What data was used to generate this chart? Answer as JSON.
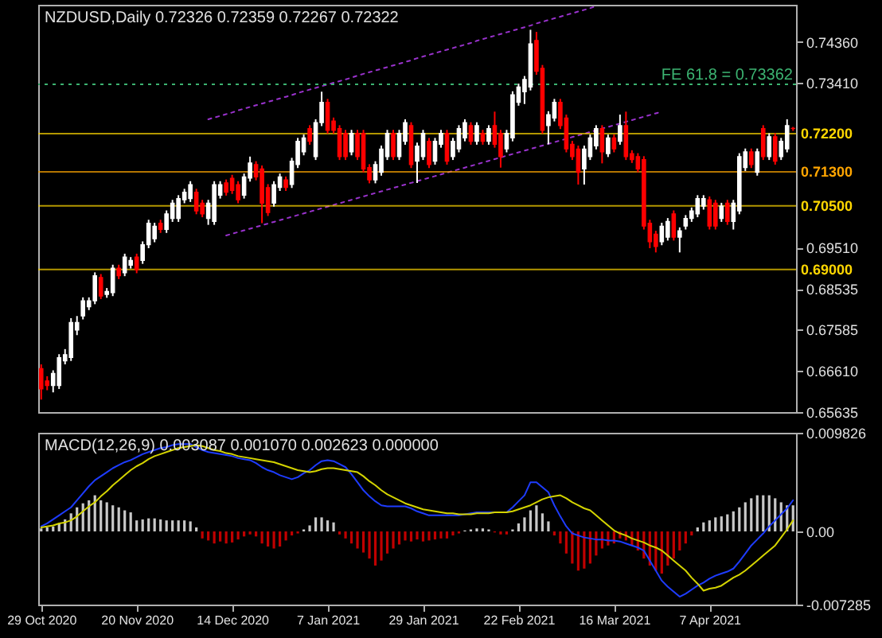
{
  "chart_data": [
    {
      "type": "candlestick",
      "title": "NZDUSD,Daily 0.72326 0.72359 0.72267 0.72322",
      "categories": [
        null,
        null,
        null,
        null,
        null,
        null,
        null,
        null,
        null,
        null,
        null,
        null,
        null,
        null,
        null,
        null,
        null,
        null,
        null,
        null,
        null,
        null,
        null,
        null,
        null,
        null,
        null,
        null,
        null,
        null,
        null,
        null,
        null,
        null,
        null,
        null,
        null,
        null,
        null,
        null,
        null,
        null,
        null,
        null,
        null,
        null,
        null,
        null,
        null,
        null,
        null,
        null,
        null,
        null,
        null,
        null,
        null,
        null,
        null,
        null,
        null,
        null,
        null,
        null,
        null,
        null,
        null,
        null,
        null,
        null,
        null,
        null,
        null,
        null,
        null,
        null,
        null,
        null,
        null,
        null,
        null,
        null,
        null,
        null,
        null,
        null,
        null,
        null,
        null,
        null,
        null,
        null,
        null,
        null,
        null,
        null,
        null,
        null,
        null,
        null,
        null,
        null,
        null,
        null,
        null,
        null,
        null,
        null,
        null,
        null,
        null,
        null,
        null,
        null,
        null,
        null,
        null,
        null,
        null,
        null,
        null,
        null,
        null,
        null,
        null,
        null,
        null
      ],
      "ohlc": [
        [
          0.6666,
          0.6676,
          0.6593,
          0.6618
        ],
        [
          0.6637,
          0.6648,
          0.6615,
          0.6626
        ],
        [
          0.6626,
          0.6662,
          0.661,
          0.6655
        ],
        [
          0.6626,
          0.67,
          0.6618,
          0.6692
        ],
        [
          0.6684,
          0.6712,
          0.6676,
          0.6699
        ],
        [
          0.6692,
          0.6785,
          0.6684,
          0.6775
        ],
        [
          0.6757,
          0.679,
          0.6745,
          0.6775
        ],
        [
          0.679,
          0.6834,
          0.6782,
          0.6826
        ],
        [
          0.6812,
          0.6834,
          0.6804,
          0.6826
        ],
        [
          0.6826,
          0.6893,
          0.6818,
          0.6885
        ],
        [
          0.6881,
          0.6889,
          0.683,
          0.6837
        ],
        [
          0.6841,
          0.6856,
          0.6833,
          0.6848
        ],
        [
          0.6845,
          0.6911,
          0.6837,
          0.6903
        ],
        [
          0.6903,
          0.6911,
          0.6877,
          0.6885
        ],
        [
          0.6892,
          0.6937,
          0.6884,
          0.6929
        ],
        [
          0.691,
          0.6929,
          0.6902,
          0.6921
        ],
        [
          0.6929,
          0.6937,
          0.6891,
          0.6899
        ],
        [
          0.6921,
          0.6966,
          0.6913,
          0.6958
        ],
        [
          0.6958,
          0.7017,
          0.695,
          0.7009
        ],
        [
          0.6972,
          0.701,
          0.6964,
          0.7002
        ],
        [
          0.7009,
          0.7017,
          0.6986,
          0.6994
        ],
        [
          0.6994,
          0.7039,
          0.6986,
          0.7031
        ],
        [
          0.702,
          0.7064,
          0.7012,
          0.7056
        ],
        [
          0.702,
          0.7075,
          0.7012,
          0.7067
        ],
        [
          0.7064,
          0.709,
          0.7056,
          0.7082
        ],
        [
          0.7067,
          0.7108,
          0.7059,
          0.71
        ],
        [
          0.7082,
          0.709,
          0.703,
          0.7038
        ],
        [
          0.7056,
          0.7064,
          0.7023,
          0.7031
        ],
        [
          0.702,
          0.7064,
          0.7005,
          0.7056
        ],
        [
          0.7013,
          0.7108,
          0.7005,
          0.71
        ],
        [
          0.7075,
          0.7108,
          0.7067,
          0.71
        ],
        [
          0.7104,
          0.7112,
          0.7074,
          0.7082
        ],
        [
          0.7115,
          0.7123,
          0.7078,
          0.7086
        ],
        [
          0.71,
          0.7108,
          0.7056,
          0.7064
        ],
        [
          0.7075,
          0.7126,
          0.7067,
          0.7118
        ],
        [
          0.7115,
          0.7166,
          0.7107,
          0.7151
        ],
        [
          0.7147,
          0.7155,
          0.711,
          0.7118
        ],
        [
          0.7137,
          0.7145,
          0.7009,
          0.7056
        ],
        [
          0.7093,
          0.7101,
          0.7026,
          0.7034
        ],
        [
          0.7056,
          0.7108,
          0.7048,
          0.71
        ],
        [
          0.7093,
          0.7126,
          0.7085,
          0.7118
        ],
        [
          0.7111,
          0.7119,
          0.7085,
          0.7093
        ],
        [
          0.71,
          0.7163,
          0.7092,
          0.7155
        ],
        [
          0.7147,
          0.721,
          0.7139,
          0.7202
        ],
        [
          0.7177,
          0.7218,
          0.7169,
          0.721
        ],
        [
          0.7232,
          0.724,
          0.7194,
          0.7202
        ],
        [
          0.7166,
          0.7254,
          0.7158,
          0.7246
        ],
        [
          0.7246,
          0.7319,
          0.7238,
          0.7294
        ],
        [
          0.7294,
          0.7302,
          0.722,
          0.7228
        ],
        [
          0.725,
          0.7258,
          0.722,
          0.7228
        ],
        [
          0.7232,
          0.724,
          0.7158,
          0.7166
        ],
        [
          0.7221,
          0.7229,
          0.7158,
          0.7166
        ],
        [
          0.7177,
          0.7229,
          0.7169,
          0.7221
        ],
        [
          0.7221,
          0.7229,
          0.7158,
          0.7166
        ],
        [
          0.7221,
          0.7229,
          0.7129,
          0.7137
        ],
        [
          0.714,
          0.7148,
          0.7103,
          0.7111
        ],
        [
          0.7111,
          0.7155,
          0.7103,
          0.7147
        ],
        [
          0.7129,
          0.7192,
          0.7121,
          0.7184
        ],
        [
          0.7166,
          0.7229,
          0.7158,
          0.7221
        ],
        [
          0.7221,
          0.7229,
          0.7158,
          0.7166
        ],
        [
          0.7166,
          0.7229,
          0.7158,
          0.7221
        ],
        [
          0.7202,
          0.7254,
          0.7194,
          0.7246
        ],
        [
          0.7239,
          0.7247,
          0.7139,
          0.7147
        ],
        [
          0.7155,
          0.7199,
          0.7104,
          0.7191
        ],
        [
          0.7166,
          0.7229,
          0.7158,
          0.7221
        ],
        [
          0.7202,
          0.721,
          0.7139,
          0.7147
        ],
        [
          0.7155,
          0.721,
          0.7147,
          0.7202
        ],
        [
          0.7195,
          0.7229,
          0.7187,
          0.7221
        ],
        [
          0.7221,
          0.7229,
          0.7147,
          0.7155
        ],
        [
          0.7166,
          0.721,
          0.7158,
          0.7202
        ],
        [
          0.7184,
          0.724,
          0.7176,
          0.7232
        ],
        [
          0.721,
          0.7254,
          0.7202,
          0.7246
        ],
        [
          0.7239,
          0.7247,
          0.7194,
          0.7202
        ],
        [
          0.7202,
          0.7247,
          0.7194,
          0.7239
        ],
        [
          0.7221,
          0.7229,
          0.7194,
          0.7202
        ],
        [
          0.7202,
          0.724,
          0.7194,
          0.7232
        ],
        [
          0.7239,
          0.7272,
          0.7187,
          0.7195
        ],
        [
          0.7221,
          0.7229,
          0.714,
          0.7166
        ],
        [
          0.7184,
          0.7229,
          0.7176,
          0.7221
        ],
        [
          0.721,
          0.732,
          0.7202,
          0.7312
        ],
        [
          0.7294,
          0.7338,
          0.7286,
          0.733
        ],
        [
          0.7319,
          0.7356,
          0.729,
          0.7348
        ],
        [
          0.733,
          0.7465,
          0.7322,
          0.7432
        ],
        [
          0.744,
          0.746,
          0.7359,
          0.7367
        ],
        [
          0.7374,
          0.7382,
          0.722,
          0.7228
        ],
        [
          0.7239,
          0.7273,
          0.7195,
          0.7265
        ],
        [
          0.7257,
          0.7302,
          0.7249,
          0.7294
        ],
        [
          0.7294,
          0.7302,
          0.7231,
          0.7239
        ],
        [
          0.7257,
          0.7265,
          0.7176,
          0.7184
        ],
        [
          0.7195,
          0.7203,
          0.7158,
          0.7166
        ],
        [
          0.7184,
          0.7192,
          0.71,
          0.7129
        ],
        [
          0.7137,
          0.7192,
          0.71,
          0.7184
        ],
        [
          0.7166,
          0.7218,
          0.7158,
          0.721
        ],
        [
          0.7191,
          0.724,
          0.7183,
          0.7232
        ],
        [
          0.7232,
          0.724,
          0.715,
          0.7177
        ],
        [
          0.7173,
          0.7218,
          0.7165,
          0.721
        ],
        [
          0.721,
          0.7218,
          0.7176,
          0.7184
        ],
        [
          0.7202,
          0.7265,
          0.7194,
          0.7239
        ],
        [
          0.7239,
          0.7272,
          0.7158,
          0.7166
        ],
        [
          0.7173,
          0.7181,
          0.7151,
          0.7159
        ],
        [
          0.7166,
          0.7174,
          0.7129,
          0.7137
        ],
        [
          0.7159,
          0.7167,
          0.6994,
          0.7002
        ],
        [
          0.7009,
          0.7017,
          0.695,
          0.6965
        ],
        [
          0.6983,
          0.6991,
          0.694,
          0.6954
        ],
        [
          0.6965,
          0.701,
          0.6957,
          0.7002
        ],
        [
          0.6976,
          0.7021,
          0.6968,
          0.7013
        ],
        [
          0.7031,
          0.7039,
          0.6968,
          0.6976
        ],
        [
          0.6976,
          0.6999,
          0.694,
          0.6991
        ],
        [
          0.7002,
          0.7028,
          0.6994,
          0.702
        ],
        [
          0.702,
          0.7046,
          0.7012,
          0.7038
        ],
        [
          0.7031,
          0.7075,
          0.7023,
          0.7067
        ],
        [
          0.7049,
          0.7075,
          0.7041,
          0.7067
        ],
        [
          0.7064,
          0.7072,
          0.6994,
          0.7002
        ],
        [
          0.7056,
          0.7064,
          0.6994,
          0.7002
        ],
        [
          0.702,
          0.7057,
          0.7012,
          0.7049
        ],
        [
          0.7056,
          0.7064,
          0.7005,
          0.7013
        ],
        [
          0.7013,
          0.7064,
          0.6994,
          0.7056
        ],
        [
          0.7038,
          0.7174,
          0.703,
          0.7166
        ],
        [
          0.714,
          0.7185,
          0.7132,
          0.7177
        ],
        [
          0.7177,
          0.7185,
          0.7139,
          0.7147
        ],
        [
          0.7129,
          0.7185,
          0.7121,
          0.7177
        ],
        [
          0.7232,
          0.724,
          0.7158,
          0.7166
        ],
        [
          0.7166,
          0.7221,
          0.7158,
          0.7213
        ],
        [
          0.7213,
          0.7221,
          0.7147,
          0.7155
        ],
        [
          0.7166,
          0.721,
          0.7158,
          0.7202
        ],
        [
          0.7184,
          0.7254,
          0.7176,
          0.7239
        ],
        [
          0.72326,
          0.72359,
          0.72267,
          0.72322
        ]
      ],
      "colors": [
        "#ff0000",
        "#ff0000",
        "#ffffff",
        "#ffffff",
        "#ffffff",
        "#ffffff",
        "#ffffff",
        "#ffffff",
        "#ffffff",
        "#ffffff",
        "#ff0000",
        "#ffffff",
        "#ffffff",
        "#ff0000",
        "#ffffff",
        "#ffffff",
        "#ff0000",
        "#ffffff",
        "#ffffff",
        "#ffffff",
        "#ff0000",
        "#ffffff",
        "#ffffff",
        "#ffffff",
        "#ffffff",
        "#ffffff",
        "#ff0000",
        "#ff0000",
        "#ffffff",
        "#ffffff",
        "#ffffff",
        "#ff0000",
        "#ff0000",
        "#ff0000",
        "#ffffff",
        "#ffffff",
        "#ff0000",
        "#ff0000",
        "#ff0000",
        "#ffffff",
        "#ffffff",
        "#ff0000",
        "#ffffff",
        "#ffffff",
        "#ffffff",
        "#ff0000",
        "#ffffff",
        "#ffffff",
        "#ff0000",
        "#ff0000",
        "#ff0000",
        "#ff0000",
        "#ffffff",
        "#ff0000",
        "#ff0000",
        "#ff0000",
        "#ffffff",
        "#ffffff",
        "#ffffff",
        "#ff0000",
        "#ffffff",
        "#ffffff",
        "#ff0000",
        "#ffffff",
        "#ffffff",
        "#ff0000",
        "#ffffff",
        "#ffffff",
        "#ff0000",
        "#ffffff",
        "#ffffff",
        "#ffffff",
        "#ff0000",
        "#ffffff",
        "#ff0000",
        "#ffffff",
        "#ff0000",
        "#ff0000",
        "#ffffff",
        "#ffffff",
        "#ffffff",
        "#ffffff",
        "#ffffff",
        "#ff0000",
        "#ff0000",
        "#ffffff",
        "#ffffff",
        "#ff0000",
        "#ff0000",
        "#ff0000",
        "#ff0000",
        "#ffffff",
        "#ffffff",
        "#ffffff",
        "#ff0000",
        "#ffffff",
        "#ff0000",
        "#ffffff",
        "#ff0000",
        "#ff0000",
        "#ff0000",
        "#ff0000",
        "#ff0000",
        "#ff0000",
        "#ffffff",
        "#ffffff",
        "#ff0000",
        "#ffffff",
        "#ffffff",
        "#ffffff",
        "#ffffff",
        "#ffffff",
        "#ff0000",
        "#ff0000",
        "#ffffff",
        "#ff0000",
        "#ffffff",
        "#ffffff",
        "#ffffff",
        "#ff0000",
        "#ffffff",
        "#ff0000",
        "#ffffff",
        "#ff0000",
        "#ffffff",
        "#ffffff",
        "#ff0000"
      ],
      "series": [
        {
          "type": "line",
          "color": "#9932cc",
          "line_style": "dotted",
          "values": [
            null,
            null,
            null,
            null,
            null,
            null,
            null,
            null,
            null,
            null,
            null,
            null,
            null,
            null,
            null,
            null,
            null,
            null,
            null,
            null,
            null,
            null,
            null,
            null,
            null,
            null,
            null,
            null,
            0.7254,
            0.7258,
            0.7262,
            0.7266,
            0.727,
            0.7275,
            0.7279,
            0.7283,
            0.7287,
            0.7291,
            0.7295,
            0.7299,
            0.7303,
            0.7307,
            0.7311,
            0.7316,
            0.732,
            0.7324,
            0.7328,
            0.7332,
            0.7336,
            0.734,
            0.7344,
            0.7348,
            0.7352,
            0.7357,
            0.7361,
            0.7365,
            0.7369,
            0.7373,
            0.7377,
            0.7381,
            0.7385,
            0.7389,
            0.7393,
            0.7398,
            0.7402,
            0.7406,
            0.741,
            0.7414,
            0.7418,
            0.7422,
            0.7426,
            0.743,
            0.7434,
            0.7439,
            0.7443,
            0.7447,
            0.7451,
            0.7455,
            0.7459,
            0.7463,
            0.7467,
            0.7471,
            0.7475,
            0.748,
            0.7484,
            0.7488,
            0.7492,
            0.7496,
            0.75,
            0.7504,
            0.7508,
            0.7512,
            0.7516,
            0.7521,
            null,
            null,
            null,
            null,
            null,
            null,
            null,
            null,
            null,
            null,
            null,
            null,
            null,
            null,
            null,
            null,
            null,
            null,
            null,
            null,
            null,
            null,
            null,
            null,
            null,
            null,
            null,
            null,
            null,
            null,
            null,
            null,
            null
          ]
        },
        {
          "type": "line",
          "color": "#9932cc",
          "line_style": "dotted",
          "values": [
            null,
            null,
            null,
            null,
            null,
            null,
            null,
            null,
            null,
            null,
            null,
            null,
            null,
            null,
            null,
            null,
            null,
            null,
            null,
            null,
            null,
            null,
            null,
            null,
            null,
            null,
            null,
            null,
            null,
            null,
            null,
            0.698,
            0.6984,
            0.6988,
            0.6992,
            0.6996,
            0.7,
            0.7004,
            0.7008,
            0.7012,
            0.7016,
            0.702,
            0.7024,
            0.7028,
            0.7032,
            0.7036,
            0.704,
            0.7044,
            0.7048,
            0.7052,
            0.7056,
            0.706,
            0.7064,
            0.7068,
            0.7072,
            0.7076,
            0.708,
            0.7084,
            0.7088,
            0.7092,
            0.7096,
            0.71,
            0.7104,
            0.7108,
            0.7112,
            0.7116,
            0.712,
            0.7124,
            0.7128,
            0.7132,
            0.7136,
            0.714,
            0.7144,
            0.7148,
            0.7152,
            0.7156,
            0.716,
            0.7164,
            0.7168,
            0.7172,
            0.7176,
            0.718,
            0.7184,
            0.7188,
            0.7192,
            0.7196,
            0.72,
            0.7204,
            0.7208,
            0.7212,
            0.7216,
            0.722,
            0.7224,
            0.7228,
            0.7232,
            0.7236,
            0.724,
            0.7244,
            0.7248,
            0.7252,
            0.7256,
            0.726,
            0.7264,
            0.7268,
            0.7272,
            null,
            null,
            null,
            null,
            null,
            null,
            null,
            null,
            null,
            null,
            null,
            null,
            null,
            null,
            null,
            null,
            null,
            null,
            null,
            null,
            null,
            null
          ]
        }
      ],
      "ylim": [
        0.65635,
        0.7524
      ],
      "yticks": [
        {
          "value": 0.7436,
          "label": "0.74360"
        },
        {
          "value": 0.7341,
          "label": "0.73410"
        },
        {
          "value": 0.6951,
          "label": "0.69510"
        },
        {
          "value": 0.68535,
          "label": "0.68535"
        },
        {
          "value": 0.67585,
          "label": "0.67585"
        },
        {
          "value": 0.6661,
          "label": "0.66610"
        },
        {
          "value": 0.65635,
          "label": "0.65635"
        }
      ],
      "ref_lines": [
        {
          "axis": "y",
          "value": 0.73362,
          "label": "FE 61.8 = 0.73362",
          "color": "#3cb371",
          "line_style": "dotted"
        },
        {
          "axis": "y",
          "value": 0.722,
          "label": "0.72200",
          "color": "#ffd700"
        },
        {
          "axis": "y",
          "value": 0.713,
          "label": "0.71300",
          "color": "#ffa500"
        },
        {
          "axis": "y",
          "value": 0.705,
          "label": "0.70500",
          "color": "#ffd700"
        },
        {
          "axis": "y",
          "value": 0.69,
          "label": "0.69000",
          "color": "#ffd700"
        }
      ],
      "tick_labels": "y"
    },
    {
      "type": "bar",
      "title": "MACD(12,26,9) 0.003087 0.001070 0.002623 0.000000",
      "categories": [
        "29 Oct 2020",
        null,
        null,
        null,
        null,
        null,
        null,
        null,
        null,
        null,
        null,
        null,
        null,
        null,
        null,
        null,
        "20 Nov 2020",
        null,
        null,
        null,
        null,
        null,
        null,
        null,
        null,
        null,
        null,
        null,
        null,
        null,
        null,
        null,
        "14 Dec 2020",
        null,
        null,
        null,
        null,
        null,
        null,
        null,
        null,
        null,
        null,
        null,
        null,
        null,
        null,
        null,
        "7 Jan 2021",
        null,
        null,
        null,
        null,
        null,
        null,
        null,
        null,
        null,
        null,
        null,
        null,
        null,
        null,
        null,
        "29 Jan 2021",
        null,
        null,
        null,
        null,
        null,
        null,
        null,
        null,
        null,
        null,
        null,
        null,
        null,
        null,
        null,
        "22 Feb 2021",
        null,
        null,
        null,
        null,
        null,
        null,
        null,
        null,
        null,
        null,
        null,
        null,
        null,
        null,
        null,
        "16 Mar 2021",
        null,
        null,
        null,
        null,
        null,
        null,
        null,
        null,
        null,
        null,
        null,
        null,
        null,
        null,
        null,
        "7 Apr 2021",
        null,
        null,
        null,
        null,
        null,
        null,
        null,
        null,
        null,
        null,
        null,
        null,
        null,
        null
      ],
      "series": [
        {
          "type": "bar",
          "colors": [
            "#c8c8c8",
            "#c8c8c8",
            "#c8c8c8",
            "#c8c8c8",
            "#c8c8c8",
            "#c8c8c8",
            "#c8c8c8",
            "#c8c8c8",
            "#c8c8c8",
            "#c8c8c8",
            "#c8c8c8",
            "#c8c8c8",
            "#c8c8c8",
            "#c8c8c8",
            "#c8c8c8",
            "#c8c8c8",
            "#c8c8c8",
            "#c8c8c8",
            "#c8c8c8",
            "#c8c8c8",
            "#c8c8c8",
            "#c8c8c8",
            "#c8c8c8",
            "#c8c8c8",
            "#c8c8c8",
            "#c8c8c8",
            "#c8c8c8",
            "#c00000",
            "#c00000",
            "#c00000",
            "#c00000",
            "#c00000",
            "#c00000",
            "#c00000",
            "#c00000",
            "#c00000",
            "#c00000",
            "#c00000",
            "#c00000",
            "#c00000",
            "#c00000",
            "#c00000",
            "#c00000",
            "#c00000",
            "#c8c8c8",
            "#c8c8c8",
            "#c8c8c8",
            "#c8c8c8",
            "#c8c8c8",
            "#c8c8c8",
            "#c00000",
            "#c00000",
            "#c00000",
            "#c00000",
            "#c00000",
            "#c00000",
            "#c00000",
            "#c00000",
            "#c00000",
            "#c00000",
            "#c00000",
            "#c00000",
            "#c00000",
            "#c00000",
            "#c00000",
            "#c00000",
            "#c00000",
            "#c00000",
            "#c00000",
            "#c00000",
            "#c00000",
            "#c8c8c8",
            "#c8c8c8",
            "#c8c8c8",
            "#c8c8c8",
            "#c8c8c8",
            "#c00000",
            "#c00000",
            "#c00000",
            "#c8c8c8",
            "#c8c8c8",
            "#c8c8c8",
            "#c8c8c8",
            "#c8c8c8",
            "#c8c8c8",
            "#c8c8c8",
            "#c00000",
            "#c00000",
            "#c00000",
            "#c00000",
            "#c00000",
            "#c00000",
            "#c00000",
            "#c00000",
            "#c00000",
            "#c00000",
            "#c00000",
            "#c00000",
            "#c00000",
            "#c00000",
            "#c00000",
            "#c00000",
            "#c00000",
            "#c00000",
            "#c00000",
            "#c00000",
            "#c00000",
            "#c00000",
            "#c00000",
            "#c00000",
            "#c8c8c8",
            "#c8c8c8",
            "#c8c8c8",
            "#c8c8c8",
            "#c8c8c8",
            "#c8c8c8",
            "#c8c8c8",
            "#c8c8c8",
            "#c8c8c8",
            "#c8c8c8",
            "#c8c8c8",
            "#c8c8c8",
            "#c8c8c8",
            "#c8c8c8",
            "#c8c8c8",
            "#c8c8c8",
            "#c8c8c8"
          ],
          "values": [
            0.0003,
            0.0004,
            0.0005,
            0.0008,
            0.0012,
            0.0018,
            0.0024,
            0.0028,
            0.0031,
            0.0036,
            0.0031,
            0.0029,
            0.0026,
            0.0024,
            0.0021,
            0.0019,
            0.0011,
            0.0012,
            0.0013,
            0.0013,
            0.0012,
            0.0011,
            0.0011,
            0.0011,
            0.0011,
            0.001,
            0.0004,
            -0.0007,
            -0.0009,
            -0.0012,
            -0.001,
            -0.0012,
            -0.0011,
            -0.0008,
            -0.0005,
            -0.0003,
            -0.0005,
            -0.0012,
            -0.0015,
            -0.0017,
            -0.0015,
            -0.0009,
            -0.0004,
            -0.0002,
            0.0002,
            0.0006,
            0.0014,
            0.0014,
            0.0011,
            0.0009,
            -0.0003,
            -0.0007,
            -0.0012,
            -0.0017,
            -0.0021,
            -0.0027,
            -0.0034,
            -0.0029,
            -0.0022,
            -0.0017,
            -0.0013,
            -0.0009,
            -0.001,
            -0.0008,
            -0.001,
            -0.0009,
            -0.0008,
            -0.0007,
            -0.0007,
            -0.0004,
            -0.0002,
            0.0001,
            0.0002,
            0.0003,
            0.0003,
            0.0002,
            -0.0001,
            -0.0003,
            -0.0003,
            0.0002,
            0.0008,
            0.0014,
            0.0021,
            0.0026,
            0.0018,
            0.001,
            -0.0004,
            -0.0012,
            -0.0022,
            -0.0032,
            -0.0039,
            -0.0037,
            -0.0032,
            -0.0024,
            -0.0017,
            -0.0014,
            -0.0012,
            -0.0007,
            -0.0009,
            -0.0014,
            -0.0019,
            -0.0027,
            -0.0034,
            -0.0039,
            -0.0042,
            -0.0034,
            -0.0027,
            -0.0019,
            -0.0012,
            -0.0004,
            0.0004,
            0.0009,
            0.0011,
            0.0014,
            0.0015,
            0.0017,
            0.002,
            0.0024,
            0.0029,
            0.0033,
            0.0036,
            0.0036,
            0.0036,
            0.0033,
            0.0029,
            0.0026,
            0.0026
          ]
        },
        {
          "type": "line",
          "color": "#1e3cff",
          "values": [
            0.0005,
            0.0008,
            0.0012,
            0.0016,
            0.002,
            0.0024,
            0.0031,
            0.0038,
            0.0045,
            0.0051,
            0.0055,
            0.0059,
            0.0063,
            0.0066,
            0.0069,
            0.0071,
            0.0074,
            0.0077,
            0.0079,
            0.0081,
            0.0083,
            0.0084,
            0.0086,
            0.0087,
            0.0087,
            0.0087,
            0.0084,
            0.0081,
            0.0079,
            0.0078,
            0.0077,
            0.0076,
            0.0075,
            0.0073,
            0.0072,
            0.0071,
            0.0068,
            0.0064,
            0.0061,
            0.0059,
            0.0056,
            0.0054,
            0.0052,
            0.0054,
            0.0058,
            0.0061,
            0.0066,
            0.007,
            0.0071,
            0.007,
            0.0067,
            0.0064,
            0.0057,
            0.0049,
            0.0041,
            0.0035,
            0.003,
            0.0026,
            0.0025,
            0.0025,
            0.0025,
            0.0025,
            0.0023,
            0.002,
            0.0018,
            0.0016,
            0.0016,
            0.0016,
            0.0016,
            0.0016,
            0.0016,
            0.0017,
            0.0018,
            0.0019,
            0.0019,
            0.0019,
            0.0019,
            0.0019,
            0.0019,
            0.0024,
            0.003,
            0.0036,
            0.0049,
            0.0049,
            0.0044,
            0.0039,
            0.0026,
            0.0015,
            0.0005,
            -0.0002,
            -0.0004,
            -0.0006,
            -0.0007,
            -0.0008,
            -0.0008,
            -0.0009,
            -0.0009,
            -0.001,
            -0.0012,
            -0.0014,
            -0.0016,
            -0.0019,
            -0.0029,
            -0.0039,
            -0.0049,
            -0.0055,
            -0.006,
            -0.0065,
            -0.0062,
            -0.0058,
            -0.0054,
            -0.0051,
            -0.0047,
            -0.0044,
            -0.0042,
            -0.004,
            -0.0037,
            -0.003,
            -0.0022,
            -0.0014,
            -0.0008,
            -0.0002,
            0.0005,
            0.0011,
            0.0017,
            0.0023,
            0.0031
          ]
        },
        {
          "type": "line",
          "color": "#d4d400",
          "values": [
            0.0004,
            0.0005,
            0.0006,
            0.0008,
            0.0009,
            0.0011,
            0.0015,
            0.002,
            0.0025,
            0.0029,
            0.0035,
            0.004,
            0.0046,
            0.0051,
            0.0056,
            0.0061,
            0.0065,
            0.0068,
            0.0072,
            0.0075,
            0.0077,
            0.0079,
            0.0081,
            0.0083,
            0.0084,
            0.0085,
            0.0086,
            0.0085,
            0.0083,
            0.0081,
            0.008,
            0.0078,
            0.0077,
            0.0075,
            0.0074,
            0.0073,
            0.0072,
            0.0071,
            0.007,
            0.0069,
            0.0067,
            0.0065,
            0.0063,
            0.0061,
            0.006,
            0.0059,
            0.006,
            0.0062,
            0.0063,
            0.0063,
            0.0062,
            0.0061,
            0.006,
            0.0059,
            0.0055,
            0.005,
            0.0046,
            0.0041,
            0.0037,
            0.0034,
            0.0031,
            0.0028,
            0.0026,
            0.0024,
            0.0022,
            0.0021,
            0.002,
            0.0019,
            0.0018,
            0.0018,
            0.0017,
            0.0017,
            0.0017,
            0.0018,
            0.0018,
            0.0018,
            0.0019,
            0.0019,
            0.0019,
            0.002,
            0.0022,
            0.0024,
            0.0026,
            0.0029,
            0.0032,
            0.0034,
            0.0035,
            0.0036,
            0.0033,
            0.0029,
            0.0026,
            0.0023,
            0.0021,
            0.0016,
            0.0011,
            0.0006,
            0.0001,
            -0.0002,
            -0.0004,
            -0.0007,
            -0.0009,
            -0.0011,
            -0.0014,
            -0.0016,
            -0.0019,
            -0.0024,
            -0.0029,
            -0.0034,
            -0.0039,
            -0.0046,
            -0.0052,
            -0.0059,
            -0.0057,
            -0.0056,
            -0.0054,
            -0.005,
            -0.0046,
            -0.0043,
            -0.0039,
            -0.0034,
            -0.0029,
            -0.0024,
            -0.0019,
            -0.0014,
            -0.0006,
            0.0002,
            0.0011
          ]
        }
      ],
      "ylim": [
        -0.007285,
        0.009826
      ],
      "yticks": [
        0.009826,
        {
          "value": 0,
          "label": "0.00"
        },
        -0.007285
      ]
    }
  ]
}
